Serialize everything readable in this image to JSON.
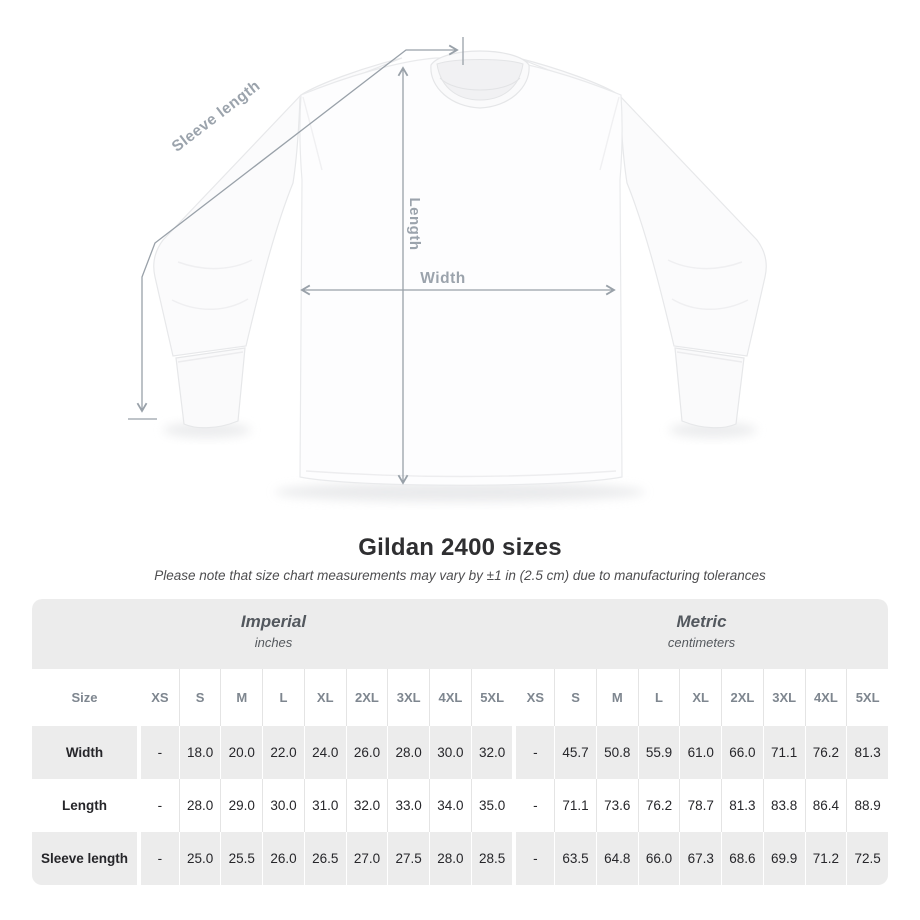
{
  "title": "Gildan 2400 sizes",
  "subtitle": "Please note that size chart measurements may vary by ±1 in (2.5 cm) due to manufacturing tolerances",
  "diagram": {
    "width_label": "Width",
    "length_label": "Length",
    "sleeve_label": "Sleeve length"
  },
  "table": {
    "size_header": "Size",
    "groups": [
      {
        "label": "Imperial",
        "unit": "inches"
      },
      {
        "label": "Metric",
        "unit": "centimeters"
      }
    ],
    "sizes": [
      "XS",
      "S",
      "M",
      "L",
      "XL",
      "2XL",
      "3XL",
      "4XL",
      "5XL"
    ],
    "rows": [
      {
        "label": "Width",
        "imperial": [
          "-",
          "18.0",
          "20.0",
          "22.0",
          "24.0",
          "26.0",
          "28.0",
          "30.0",
          "32.0"
        ],
        "metric": [
          "-",
          "45.7",
          "50.8",
          "55.9",
          "61.0",
          "66.0",
          "71.1",
          "76.2",
          "81.3"
        ]
      },
      {
        "label": "Length",
        "imperial": [
          "-",
          "28.0",
          "29.0",
          "30.0",
          "31.0",
          "32.0",
          "33.0",
          "34.0",
          "35.0"
        ],
        "metric": [
          "-",
          "71.1",
          "73.6",
          "76.2",
          "78.7",
          "81.3",
          "83.8",
          "86.4",
          "88.9"
        ]
      },
      {
        "label": "Sleeve length",
        "imperial": [
          "-",
          "25.0",
          "25.5",
          "26.0",
          "26.5",
          "27.0",
          "27.5",
          "28.0",
          "28.5"
        ],
        "metric": [
          "-",
          "63.5",
          "64.8",
          "66.0",
          "67.3",
          "68.6",
          "69.9",
          "71.2",
          "72.5"
        ]
      }
    ]
  },
  "chart_data": {
    "type": "table",
    "title": "Gildan 2400 sizes",
    "note": "Size chart measurements may vary by ±1 in (2.5 cm) due to manufacturing tolerances",
    "column_groups": [
      {
        "name": "Imperial",
        "unit": "inches"
      },
      {
        "name": "Metric",
        "unit": "centimeters"
      }
    ],
    "sizes": [
      "XS",
      "S",
      "M",
      "L",
      "XL",
      "2XL",
      "3XL",
      "4XL",
      "5XL"
    ],
    "rows": [
      {
        "measurement": "Width",
        "imperial_in": [
          null,
          18.0,
          20.0,
          22.0,
          24.0,
          26.0,
          28.0,
          30.0,
          32.0
        ],
        "metric_cm": [
          null,
          45.7,
          50.8,
          55.9,
          61.0,
          66.0,
          71.1,
          76.2,
          81.3
        ]
      },
      {
        "measurement": "Length",
        "imperial_in": [
          null,
          28.0,
          29.0,
          30.0,
          31.0,
          32.0,
          33.0,
          34.0,
          35.0
        ],
        "metric_cm": [
          null,
          71.1,
          73.6,
          76.2,
          78.7,
          81.3,
          83.8,
          86.4,
          88.9
        ]
      },
      {
        "measurement": "Sleeve length",
        "imperial_in": [
          null,
          25.0,
          25.5,
          26.0,
          26.5,
          27.0,
          27.5,
          28.0,
          28.5
        ],
        "metric_cm": [
          null,
          63.5,
          64.8,
          66.0,
          67.3,
          68.6,
          69.9,
          71.2,
          72.5
        ]
      }
    ]
  },
  "colors": {
    "measurement_line": "#99a1a9",
    "measurement_label": "#9ba3ac",
    "band_background": "#ececec",
    "stripe_background": "#ececec",
    "header_text": "#7e868f",
    "row_label_text": "#5c646d",
    "value_text": "#26262a",
    "title_text": "#2f2f31"
  }
}
